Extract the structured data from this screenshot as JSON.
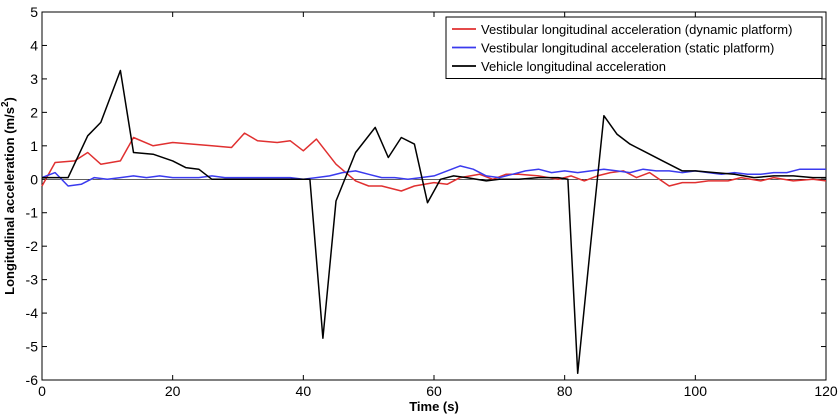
{
  "chart_data": {
    "type": "line",
    "xlabel": "Time (s)",
    "ylabel": "Longitudinal acceleration (m/s",
    "ylabel_sup": "2",
    "ylabel_close": ")",
    "xlim": [
      0,
      120
    ],
    "ylim": [
      -6,
      5
    ],
    "xticks": [
      0,
      20,
      40,
      60,
      80,
      100,
      120
    ],
    "yticks": [
      -6,
      -5,
      -4,
      -3,
      -2,
      -1,
      0,
      1,
      2,
      3,
      4,
      5
    ],
    "grid": false,
    "legend_position": "top-right",
    "series": [
      {
        "name": "Vestibular longitudinal acceleration (dynamic platform)",
        "color": "#e03030",
        "x": [
          0,
          2,
          5,
          7,
          9,
          12,
          14,
          17,
          20,
          23,
          26,
          29,
          31,
          33,
          36,
          38,
          40,
          42,
          45,
          48,
          50,
          52,
          55,
          57,
          60,
          62,
          64,
          67,
          69,
          71,
          73,
          76,
          79,
          81,
          83,
          85,
          87,
          89,
          91,
          93,
          96,
          98,
          100,
          102,
          105,
          107,
          110,
          112,
          115,
          118,
          120
        ],
        "y": [
          -0.2,
          0.5,
          0.55,
          0.8,
          0.45,
          0.55,
          1.25,
          1.0,
          1.1,
          1.05,
          1.0,
          0.95,
          1.38,
          1.15,
          1.1,
          1.15,
          0.85,
          1.2,
          0.45,
          -0.05,
          -0.2,
          -0.2,
          -0.35,
          -0.2,
          -0.1,
          -0.15,
          0.05,
          0.15,
          0.0,
          0.15,
          0.15,
          0.1,
          0.0,
          0.1,
          -0.05,
          0.1,
          0.2,
          0.25,
          0.05,
          0.2,
          -0.2,
          -0.1,
          -0.1,
          -0.05,
          -0.05,
          0.05,
          -0.05,
          0.05,
          -0.05,
          0.0,
          -0.05
        ]
      },
      {
        "name": "Vestibular longitudinal acceleration (static platform)",
        "color": "#3a3aee",
        "x": [
          0,
          2,
          4,
          6,
          8,
          10,
          12,
          14,
          16,
          18,
          20,
          22,
          24,
          26,
          28,
          30,
          32,
          34,
          36,
          38,
          40,
          42,
          44,
          46,
          48,
          50,
          52,
          54,
          56,
          58,
          60,
          62,
          64,
          66,
          68,
          70,
          72,
          74,
          76,
          78,
          80,
          82,
          84,
          86,
          88,
          90,
          92,
          94,
          96,
          98,
          100,
          102,
          104,
          106,
          108,
          110,
          112,
          114,
          116,
          118,
          120
        ],
        "y": [
          0.05,
          0.2,
          -0.2,
          -0.15,
          0.05,
          0.0,
          0.05,
          0.1,
          0.05,
          0.1,
          0.05,
          0.05,
          0.05,
          0.1,
          0.05,
          0.05,
          0.05,
          0.05,
          0.05,
          0.05,
          0.0,
          0.05,
          0.1,
          0.2,
          0.25,
          0.15,
          0.05,
          0.05,
          0.0,
          0.05,
          0.1,
          0.25,
          0.4,
          0.3,
          0.1,
          0.05,
          0.15,
          0.25,
          0.3,
          0.2,
          0.25,
          0.2,
          0.25,
          0.3,
          0.25,
          0.2,
          0.3,
          0.25,
          0.25,
          0.2,
          0.25,
          0.2,
          0.15,
          0.2,
          0.15,
          0.15,
          0.2,
          0.2,
          0.3,
          0.3,
          0.3
        ]
      },
      {
        "name": "Vehicle longitudinal acceleration",
        "color": "#000000",
        "x": [
          0,
          2,
          4,
          7,
          9,
          12,
          14,
          17,
          20,
          22,
          24,
          26,
          28,
          31,
          34,
          38,
          41,
          43,
          45,
          48,
          51,
          53,
          55,
          57,
          59,
          61,
          63,
          65,
          68,
          70,
          73,
          76,
          79,
          80.5,
          82,
          84,
          86,
          88,
          90,
          92,
          95,
          98,
          100,
          103,
          106,
          109,
          112,
          115,
          118,
          120
        ],
        "y": [
          0.05,
          0.05,
          0.05,
          1.3,
          1.7,
          3.25,
          0.8,
          0.75,
          0.55,
          0.35,
          0.3,
          0.0,
          0.0,
          0.0,
          0.0,
          0.0,
          0.0,
          -4.75,
          -0.65,
          0.8,
          1.55,
          0.65,
          1.25,
          1.05,
          -0.7,
          0.0,
          0.1,
          0.05,
          -0.05,
          0.0,
          0.0,
          0.05,
          0.05,
          0.0,
          -5.8,
          -1.9,
          1.9,
          1.35,
          1.05,
          0.85,
          0.55,
          0.25,
          0.25,
          0.2,
          0.15,
          0.05,
          0.1,
          0.1,
          0.05,
          0.05
        ]
      }
    ]
  }
}
